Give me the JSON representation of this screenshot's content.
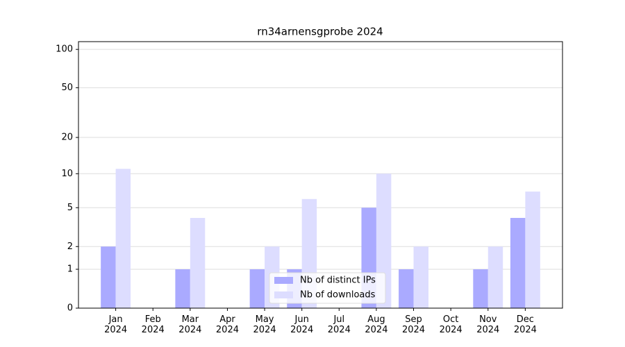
{
  "chart_data": {
    "type": "bar",
    "title": "rn34arnensgprobe 2024",
    "categories": [
      "Jan 2024",
      "Feb 2024",
      "Mar 2024",
      "Apr 2024",
      "May 2024",
      "Jun 2024",
      "Jul 2024",
      "Aug 2024",
      "Sep 2024",
      "Oct 2024",
      "Nov 2024",
      "Dec 2024"
    ],
    "series": [
      {
        "name": "Nb of distinct IPs",
        "color": "#aaaaff",
        "values": [
          2,
          0,
          1,
          0,
          1,
          1,
          0,
          5,
          1,
          0,
          1,
          4
        ]
      },
      {
        "name": "Nb of downloads",
        "color": "#ddddff",
        "values": [
          11,
          0,
          4,
          0,
          2,
          6,
          0,
          10,
          2,
          0,
          2,
          7
        ]
      }
    ],
    "ylim": [
      0,
      115
    ],
    "yticks": [
      0,
      1,
      2,
      5,
      10,
      20,
      50,
      100
    ],
    "yscale": "log1p",
    "grid": true,
    "legend": "lower center"
  }
}
